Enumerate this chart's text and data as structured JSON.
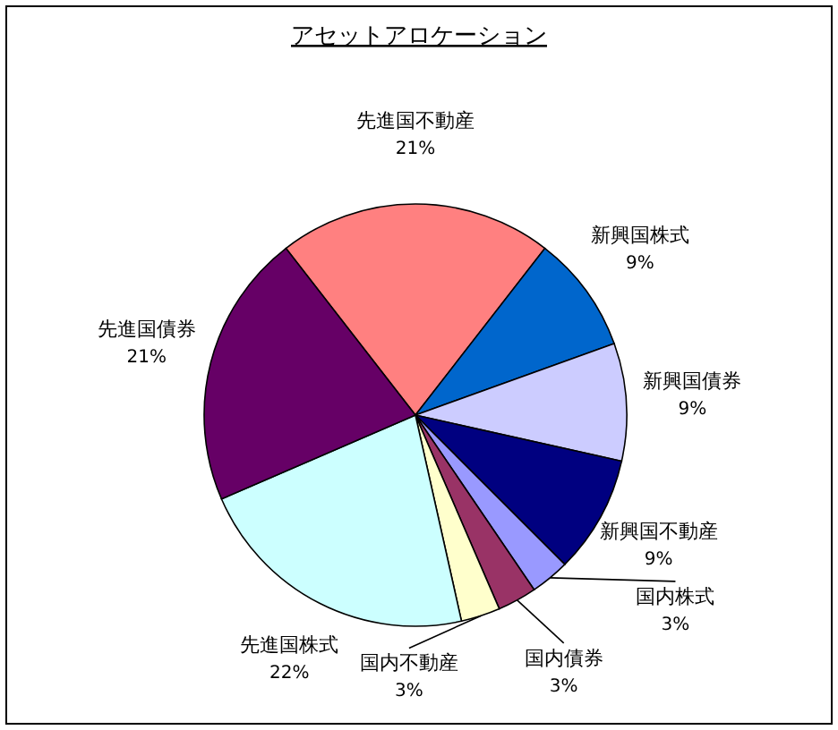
{
  "chart_data": {
    "type": "pie",
    "title": "アセットアロケーション",
    "categories": [
      "先進国不動産",
      "新興国株式",
      "新興国債券",
      "新興国不動産",
      "国内株式",
      "国内債券",
      "国内不動産",
      "先進国株式",
      "先進国債券"
    ],
    "values": [
      21,
      9,
      9,
      9,
      3,
      3,
      3,
      22,
      21
    ],
    "value_labels": [
      "21%",
      "9%",
      "9%",
      "9%",
      "3%",
      "3%",
      "3%",
      "22%",
      "21%"
    ],
    "colors": [
      "#ff8080",
      "#0066cc",
      "#ccccff",
      "#000080",
      "#9999ff",
      "#993366",
      "#ffffcc",
      "#ccffff",
      "#660066"
    ]
  }
}
